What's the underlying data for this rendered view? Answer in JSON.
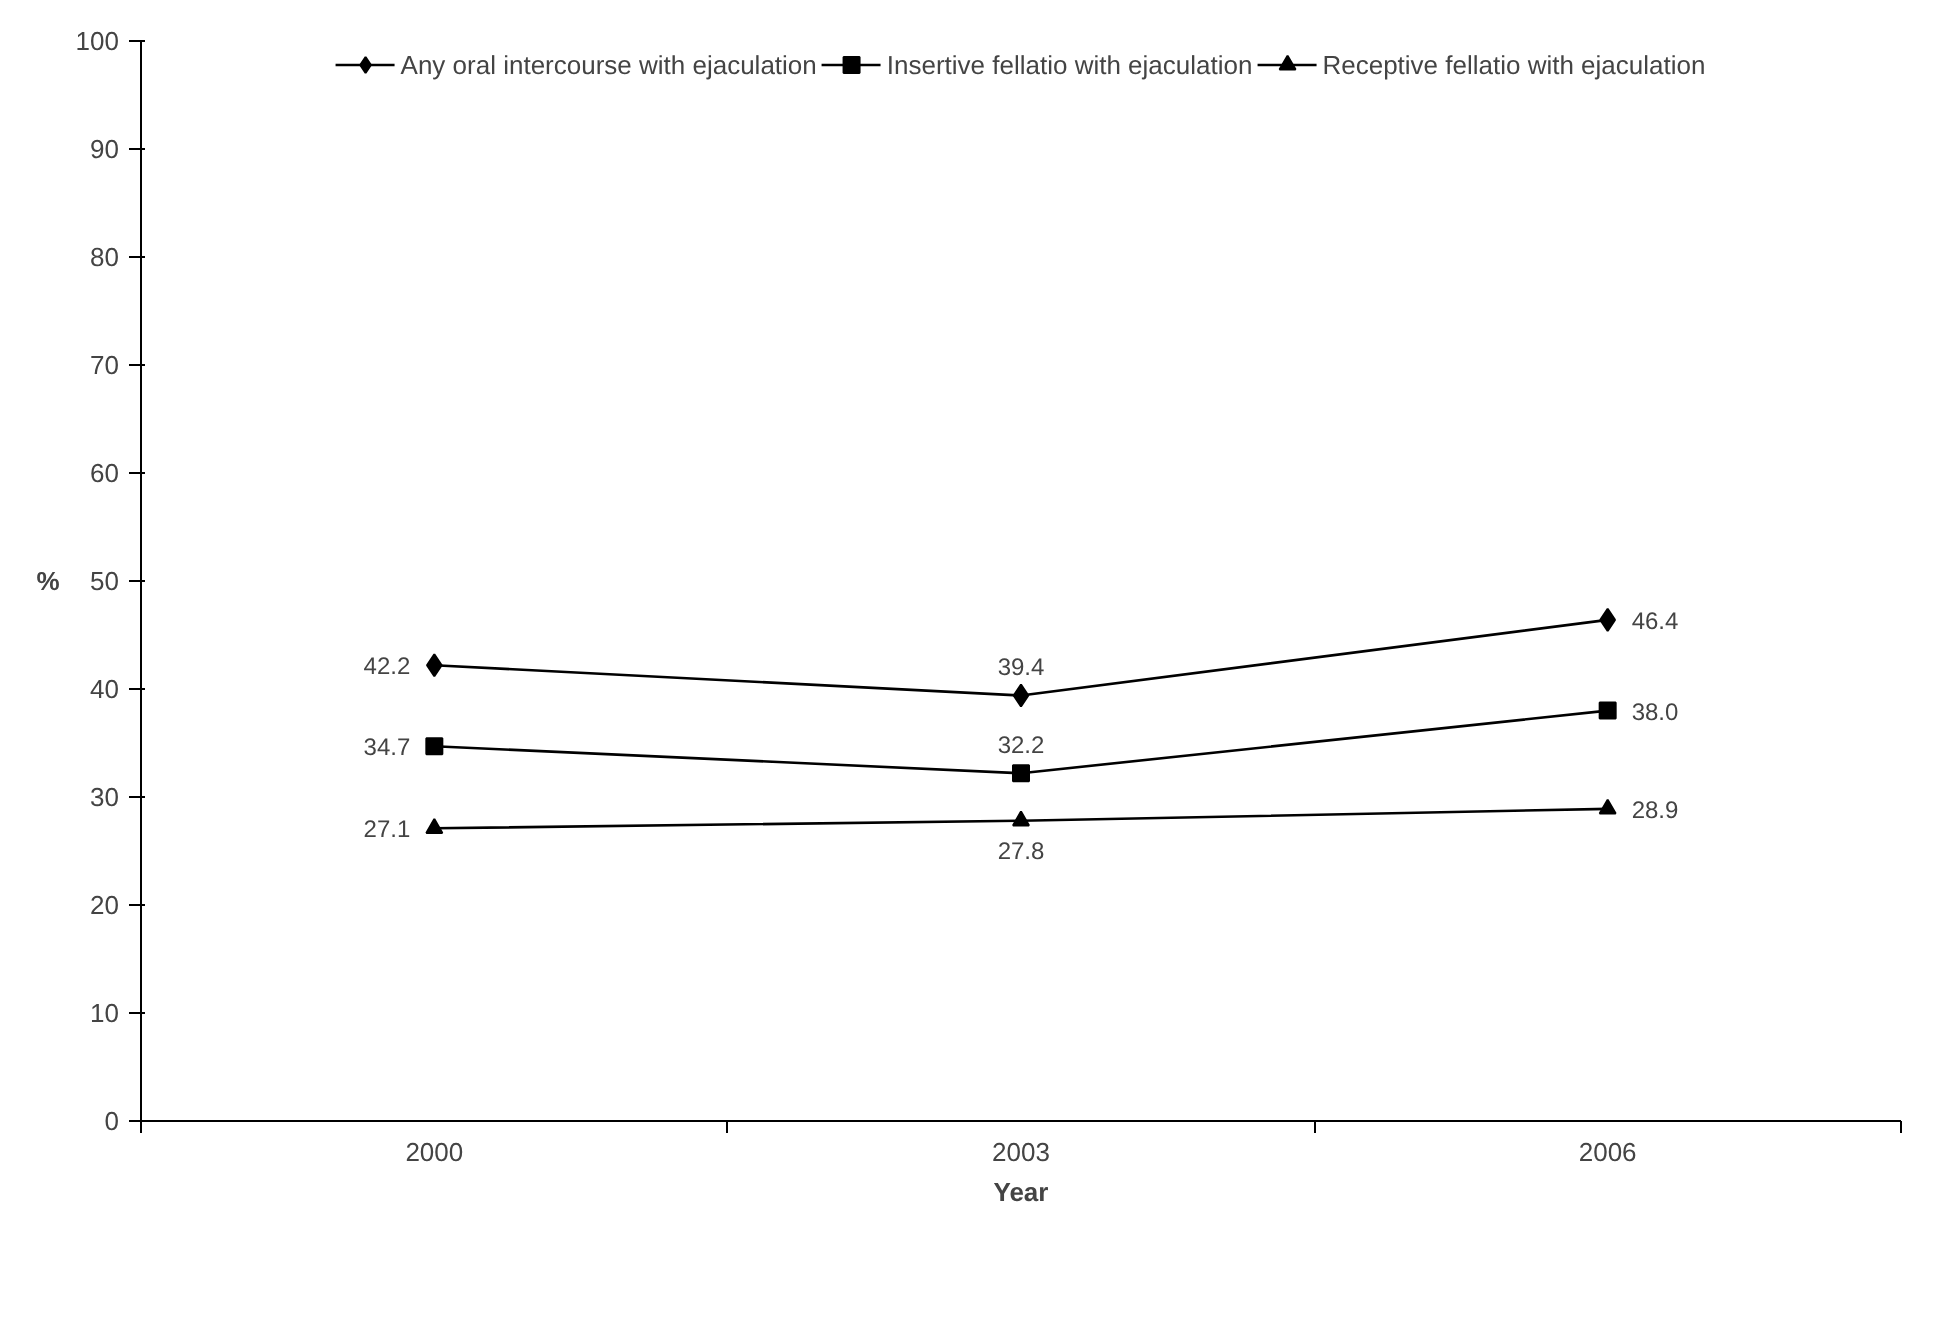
{
  "chart_data": {
    "type": "line",
    "xlabel": "Year",
    "ylabel": "%",
    "categories": [
      "2000",
      "2003",
      "2006"
    ],
    "series": [
      {
        "name": "Any oral intercourse with ejaculation",
        "color": "#000000",
        "marker": "diamond",
        "values": [
          42.2,
          39.4,
          46.4
        ],
        "value_labels": [
          "42.2",
          "39.4",
          "46.4"
        ]
      },
      {
        "name": "Insertive fellatio with ejaculation",
        "color": "#000000",
        "marker": "square",
        "values": [
          34.7,
          32.2,
          38.0
        ],
        "value_labels": [
          "34.7",
          "32.2",
          "38.0"
        ]
      },
      {
        "name": "Receptive fellatio with ejaculation",
        "color": "#000000",
        "marker": "triangle",
        "values": [
          27.1,
          27.8,
          28.9
        ],
        "value_labels": [
          "27.1",
          "27.8",
          "28.9"
        ]
      }
    ],
    "ylim": [
      0,
      100
    ],
    "yticks": [
      0,
      10,
      20,
      30,
      40,
      50,
      60,
      70,
      80,
      90,
      100
    ],
    "legend": "top",
    "line_style": "solid"
  }
}
